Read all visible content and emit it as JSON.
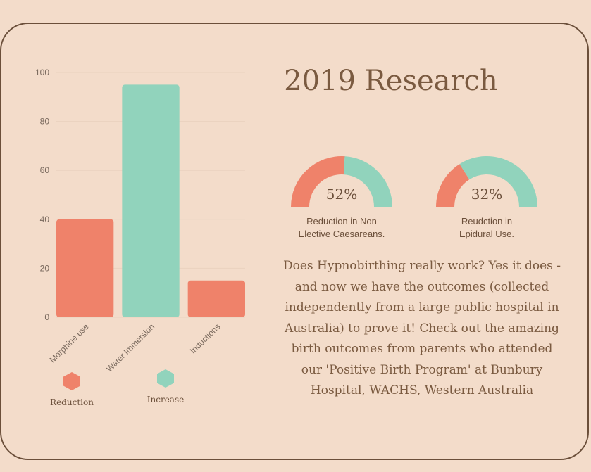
{
  "title": "2019 Research",
  "chart_data": {
    "type": "bar",
    "categories": [
      "Morphine use",
      "Water Immersion",
      "Inductions"
    ],
    "values": [
      40,
      95,
      15
    ],
    "bar_colors": [
      "#ef826a",
      "#91d3bc",
      "#ef826a"
    ],
    "ylim": [
      0,
      100
    ],
    "yticks": [
      0,
      20,
      40,
      60,
      80,
      100
    ],
    "grid": true,
    "legend": [
      {
        "label": "Reduction",
        "color": "#ef826a"
      },
      {
        "label": "Increase",
        "color": "#91d3bc"
      }
    ],
    "legend_placement": "bottom"
  },
  "gauges": [
    {
      "value": 52,
      "pct_label": "52%",
      "label_line1": "Reduction in Non",
      "label_line2": "Elective Caesareans."
    },
    {
      "value": 32,
      "pct_label": "32%",
      "label_line1": "Reudction in",
      "label_line2": "Epidural Use."
    }
  ],
  "colors": {
    "reduction": "#ef826a",
    "increase": "#91d3bc",
    "text": "#7a5a40",
    "border": "#6b4f3a",
    "background": "#f3dcca"
  },
  "body_text_lines": [
    "Does Hypnobirthing really work? Yes it does -",
    "and now we have the outcomes (collected",
    "independently from a large public hospital in",
    "Australia) to prove it! Check out the amazing",
    "birth outcomes from parents who attended",
    "our 'Positive Birth Program' at Bunbury",
    "Hospital, WACHS, Western Australia"
  ]
}
